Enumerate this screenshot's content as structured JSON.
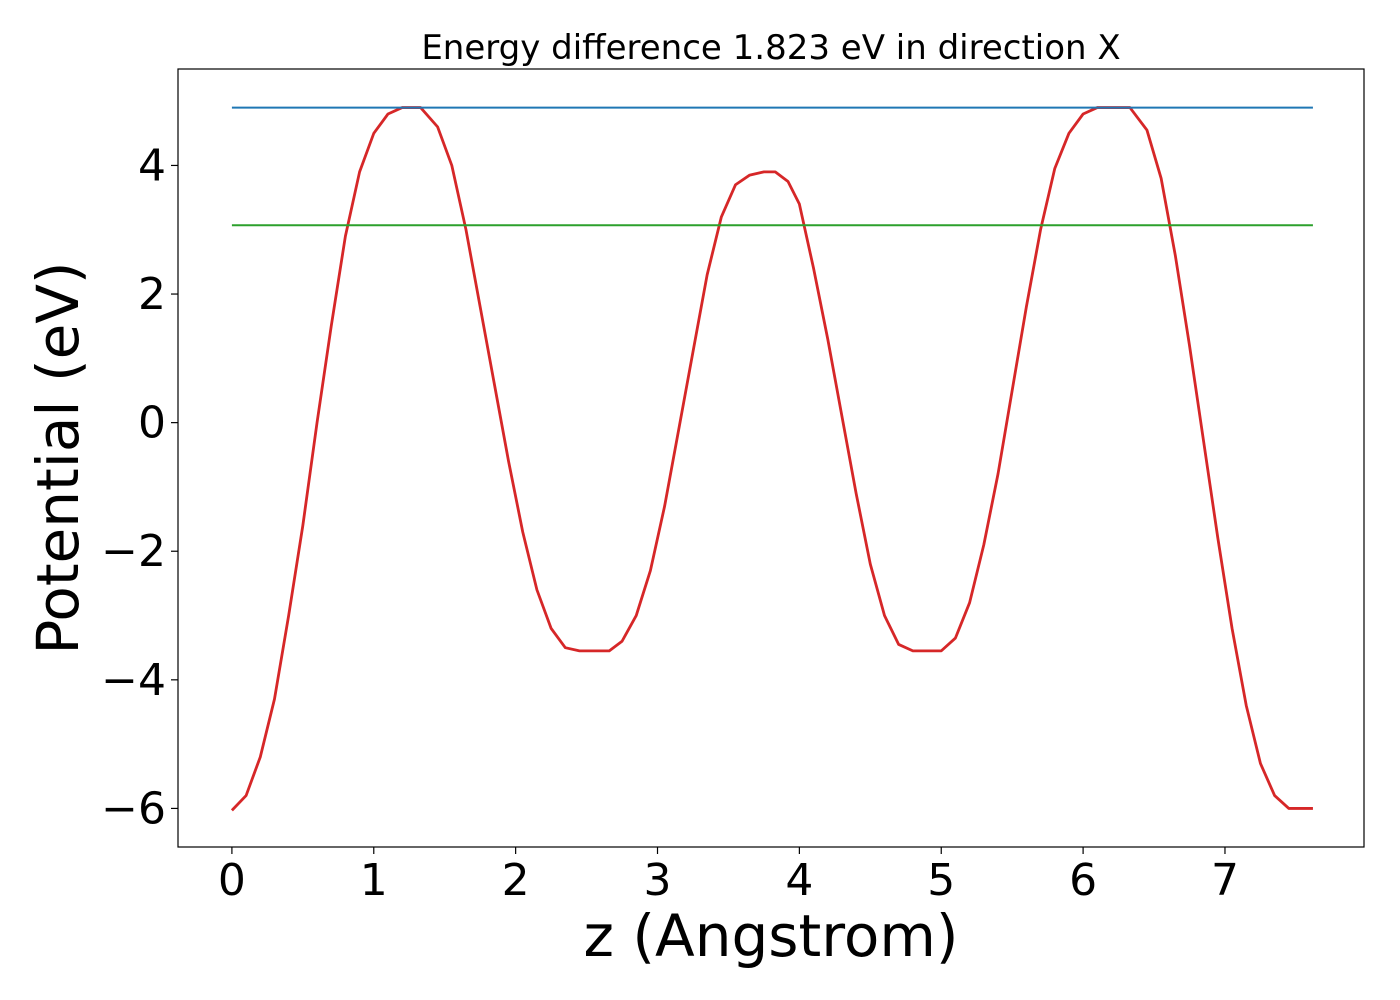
{
  "chart_data": {
    "type": "line",
    "title": "Energy difference 1.823 eV in direction X",
    "xlabel": "z (Angstrom)",
    "ylabel": "Potential (eV)",
    "xlim": [
      -0.38,
      7.98
    ],
    "ylim": [
      -6.6,
      5.5
    ],
    "grid": false,
    "x_ticks": [
      {
        "value": 0,
        "label": "0"
      },
      {
        "value": 1,
        "label": "1"
      },
      {
        "value": 2,
        "label": "2"
      },
      {
        "value": 3,
        "label": "3"
      },
      {
        "value": 4,
        "label": "4"
      },
      {
        "value": 5,
        "label": "5"
      },
      {
        "value": 6,
        "label": "6"
      },
      {
        "value": 7,
        "label": "7"
      }
    ],
    "y_ticks": [
      {
        "value": -6,
        "label": "−6"
      },
      {
        "value": -4,
        "label": "−4"
      },
      {
        "value": -2,
        "label": "−2"
      },
      {
        "value": 0,
        "label": "0"
      },
      {
        "value": 2,
        "label": "2"
      },
      {
        "value": 4,
        "label": "4"
      }
    ],
    "series": [
      {
        "color": "#d62728",
        "x": [
          0.0,
          0.1,
          0.2,
          0.3,
          0.4,
          0.5,
          0.6,
          0.7,
          0.8,
          0.9,
          1.0,
          1.1,
          1.2,
          1.33,
          1.45,
          1.55,
          1.65,
          1.75,
          1.85,
          1.95,
          2.05,
          2.15,
          2.25,
          2.35,
          2.45,
          2.55,
          2.66,
          2.75,
          2.85,
          2.95,
          3.05,
          3.15,
          3.25,
          3.35,
          3.45,
          3.55,
          3.65,
          3.75,
          3.83,
          3.92,
          4.0,
          4.1,
          4.2,
          4.3,
          4.4,
          4.5,
          4.6,
          4.7,
          4.8,
          4.9,
          5.0,
          5.1,
          5.2,
          5.3,
          5.4,
          5.5,
          5.6,
          5.7,
          5.8,
          5.9,
          6.0,
          6.1,
          6.2,
          6.33,
          6.45,
          6.55,
          6.65,
          6.75,
          6.85,
          6.95,
          7.05,
          7.15,
          7.25,
          7.35,
          7.45,
          7.55,
          7.62
        ],
        "y": [
          -6.03,
          -5.8,
          -5.2,
          -4.3,
          -3.0,
          -1.6,
          0.0,
          1.5,
          2.9,
          3.9,
          4.5,
          4.8,
          4.9,
          4.9,
          4.6,
          4.0,
          3.0,
          1.8,
          0.6,
          -0.6,
          -1.7,
          -2.6,
          -3.2,
          -3.5,
          -3.55,
          -3.55,
          -3.55,
          -3.4,
          -3.0,
          -2.3,
          -1.3,
          -0.1,
          1.1,
          2.3,
          3.2,
          3.7,
          3.85,
          3.9,
          3.9,
          3.75,
          3.4,
          2.4,
          1.3,
          0.1,
          -1.1,
          -2.2,
          -3.0,
          -3.45,
          -3.55,
          -3.55,
          -3.55,
          -3.35,
          -2.8,
          -1.9,
          -0.8,
          0.5,
          1.8,
          3.0,
          3.95,
          4.5,
          4.8,
          4.9,
          4.9,
          4.9,
          4.55,
          3.8,
          2.6,
          1.2,
          -0.3,
          -1.8,
          -3.2,
          -4.4,
          -5.3,
          -5.8,
          -6.0,
          -6.0,
          -6.0
        ]
      },
      {
        "color": "#1f77b4",
        "x": [
          0.0,
          7.62
        ],
        "y": [
          4.9,
          4.9
        ]
      },
      {
        "color": "#2ca02c",
        "x": [
          0.0,
          7.62
        ],
        "y": [
          3.07,
          3.07
        ]
      }
    ]
  }
}
